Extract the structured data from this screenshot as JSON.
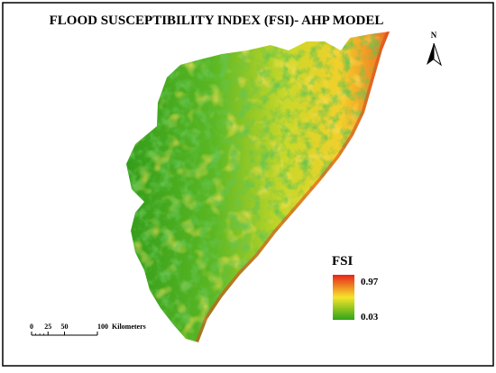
{
  "title": "FLOOD SUSCEPTIBILITY INDEX (FSI)- AHP MODEL",
  "north_arrow": {
    "label": "N"
  },
  "legend": {
    "title": "FSI",
    "max": 0.97,
    "min": 0.03,
    "colors": [
      "#e8231b",
      "#f5e52a",
      "#2fa418"
    ]
  },
  "scale_bar": {
    "ticks": [
      0,
      25,
      50,
      100
    ],
    "unit": "Kilometers"
  }
}
